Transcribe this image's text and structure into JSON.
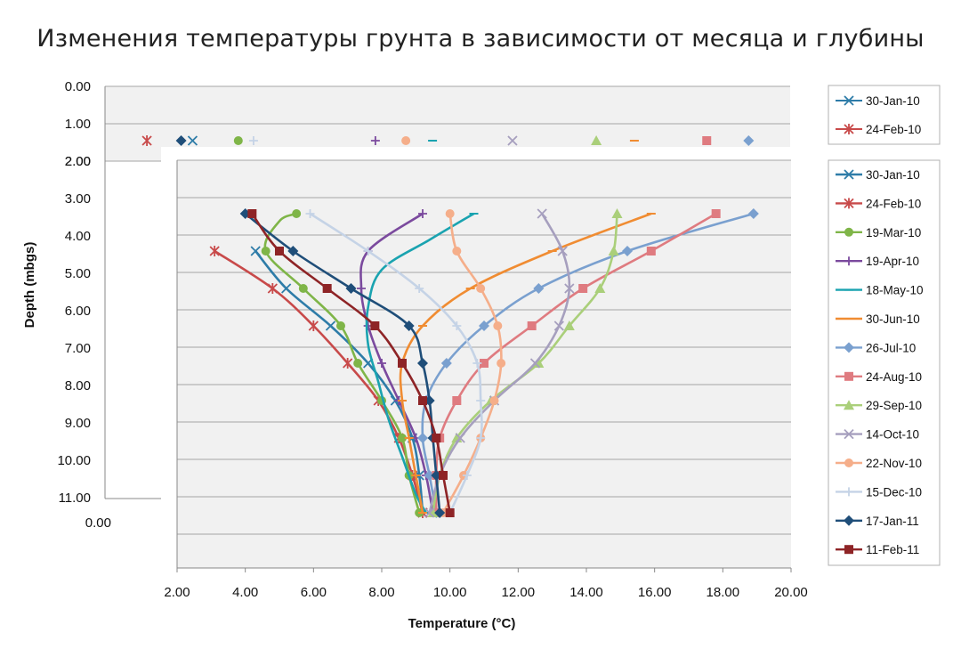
{
  "page": {
    "title": "Изменения температуры грунта в зависимости от месяца и глубины"
  },
  "chart_data": [
    {
      "type": "line",
      "title": "",
      "xlabel": "Temperature (°C)",
      "ylabel": "Depth (mbgs)",
      "xlim": [
        2,
        20
      ],
      "ylim": [
        0,
        12
      ],
      "y_inverted": true,
      "x_ticks": [
        "2.00",
        "4.00",
        "6.00",
        "8.00",
        "10.00",
        "12.00",
        "14.00",
        "16.00",
        "18.00",
        "20.00"
      ],
      "y_ticks": [
        "0.00",
        "1.00",
        "2.00",
        "3.00",
        "4.00",
        "5.00",
        "6.00",
        "7.00",
        "8.00",
        "9.00",
        "10.00",
        "11.00"
      ],
      "grid": true,
      "legend_position": "right",
      "series": [
        {
          "name": "30-Jan-10",
          "color": "#2e7ca8",
          "marker": "x",
          "points": [
            [
              4.3,
              1
            ],
            [
              5.2,
              2
            ],
            [
              6.5,
              3
            ],
            [
              7.6,
              4
            ],
            [
              8.4,
              5
            ],
            [
              8.9,
              6
            ],
            [
              9.1,
              7
            ],
            [
              9.2,
              8
            ]
          ]
        },
        {
          "name": "24-Feb-10",
          "color": "#c84a4a",
          "marker": "star",
          "points": [
            [
              3.1,
              1
            ],
            [
              4.8,
              2
            ],
            [
              6.0,
              3
            ],
            [
              7.0,
              4
            ],
            [
              7.9,
              5
            ],
            [
              8.5,
              6
            ],
            [
              8.9,
              7
            ],
            [
              9.2,
              8
            ]
          ]
        },
        {
          "name": "19-Mar-10",
          "color": "#7fb548",
          "marker": "circle",
          "points": [
            [
              5.5,
              0
            ],
            [
              5.0,
              0.2
            ],
            [
              4.6,
              1
            ],
            [
              5.7,
              2
            ],
            [
              6.8,
              3
            ],
            [
              7.3,
              4
            ],
            [
              8.0,
              5
            ],
            [
              8.6,
              6
            ],
            [
              8.8,
              7
            ],
            [
              9.1,
              8
            ]
          ]
        },
        {
          "name": "19-Apr-10",
          "color": "#7b4a9e",
          "marker": "plus",
          "points": [
            [
              9.2,
              0
            ],
            [
              7.6,
              1
            ],
            [
              7.4,
              2
            ],
            [
              7.6,
              3
            ],
            [
              8.0,
              4
            ],
            [
              8.5,
              5
            ],
            [
              9.0,
              6
            ],
            [
              9.3,
              7
            ],
            [
              9.5,
              8
            ]
          ]
        },
        {
          "name": "18-May-10",
          "color": "#1aa3b0",
          "marker": "dash",
          "points": [
            [
              10.7,
              0
            ],
            [
              9.4,
              0.7
            ],
            [
              8.0,
              1.5
            ],
            [
              7.6,
              2.5
            ],
            [
              7.6,
              3.5
            ],
            [
              7.9,
              4.5
            ],
            [
              8.2,
              5.5
            ],
            [
              8.6,
              6.5
            ],
            [
              9.0,
              7.5
            ],
            [
              9.3,
              8
            ]
          ]
        },
        {
          "name": "30-Jun-10",
          "color": "#f08c32",
          "marker": "dash",
          "points": [
            [
              15.9,
              0
            ],
            [
              13.0,
              1
            ],
            [
              10.6,
              2
            ],
            [
              9.2,
              3
            ],
            [
              8.6,
              4
            ],
            [
              8.6,
              5
            ],
            [
              8.8,
              6
            ],
            [
              9.0,
              7
            ],
            [
              9.2,
              8
            ]
          ]
        },
        {
          "name": "26-Jul-10",
          "color": "#7aa0cf",
          "marker": "diamond",
          "points": [
            [
              18.9,
              0
            ],
            [
              15.2,
              1
            ],
            [
              12.6,
              2
            ],
            [
              11.0,
              3
            ],
            [
              9.9,
              4
            ],
            [
              9.3,
              5
            ],
            [
              9.2,
              6
            ],
            [
              9.4,
              7
            ],
            [
              9.6,
              8
            ]
          ]
        },
        {
          "name": "24-Aug-10",
          "color": "#df7b80",
          "marker": "square",
          "points": [
            [
              17.8,
              0
            ],
            [
              15.9,
              1
            ],
            [
              13.9,
              2
            ],
            [
              12.4,
              3
            ],
            [
              11.0,
              4
            ],
            [
              10.2,
              5
            ],
            [
              9.7,
              6
            ],
            [
              9.6,
              7
            ],
            [
              9.6,
              8
            ]
          ]
        },
        {
          "name": "29-Sep-10",
          "color": "#aacf7a",
          "marker": "triangle",
          "points": [
            [
              14.9,
              0
            ],
            [
              14.8,
              1
            ],
            [
              14.4,
              2
            ],
            [
              13.5,
              3
            ],
            [
              12.6,
              4
            ],
            [
              11.2,
              5
            ],
            [
              10.2,
              6
            ],
            [
              9.7,
              7
            ],
            [
              9.5,
              8
            ]
          ]
        },
        {
          "name": "14-Oct-10",
          "color": "#a69fbe",
          "marker": "x",
          "points": [
            [
              12.7,
              0
            ],
            [
              13.3,
              1
            ],
            [
              13.5,
              2
            ],
            [
              13.2,
              3
            ],
            [
              12.5,
              4
            ],
            [
              11.3,
              5
            ],
            [
              10.3,
              6
            ],
            [
              9.7,
              7
            ],
            [
              9.4,
              8
            ]
          ]
        },
        {
          "name": "22-Nov-10",
          "color": "#f5ae8a",
          "marker": "circle",
          "points": [
            [
              10.0,
              0
            ],
            [
              10.2,
              1
            ],
            [
              10.9,
              2
            ],
            [
              11.4,
              3
            ],
            [
              11.5,
              4
            ],
            [
              11.3,
              5
            ],
            [
              10.9,
              6
            ],
            [
              10.4,
              7
            ],
            [
              9.8,
              8
            ]
          ]
        },
        {
          "name": "15-Dec-10",
          "color": "#c5d3e6",
          "marker": "plus",
          "points": [
            [
              5.9,
              0
            ],
            [
              7.6,
              1
            ],
            [
              9.1,
              2
            ],
            [
              10.2,
              3
            ],
            [
              10.8,
              4
            ],
            [
              10.9,
              5
            ],
            [
              10.9,
              6
            ],
            [
              10.5,
              7
            ],
            [
              10.0,
              8
            ]
          ]
        },
        {
          "name": "17-Jan-11",
          "color": "#1f4e79",
          "marker": "diamond",
          "points": [
            [
              4.0,
              0
            ],
            [
              5.4,
              1
            ],
            [
              7.1,
              2
            ],
            [
              8.8,
              3
            ],
            [
              9.2,
              4
            ],
            [
              9.4,
              5
            ],
            [
              9.5,
              6
            ],
            [
              9.6,
              7
            ],
            [
              9.7,
              8
            ]
          ]
        },
        {
          "name": "11-Feb-11",
          "color": "#8e2426",
          "marker": "square",
          "points": [
            [
              4.2,
              0
            ],
            [
              5.0,
              1
            ],
            [
              6.4,
              2
            ],
            [
              7.8,
              3
            ],
            [
              8.6,
              4
            ],
            [
              9.2,
              5
            ],
            [
              9.6,
              6
            ],
            [
              9.8,
              7
            ],
            [
              10.0,
              8
            ]
          ]
        }
      ]
    },
    {
      "type": "line",
      "x_ticks": [
        "0.00"
      ],
      "y_ticks": [
        "0.00",
        "1.00",
        "2.00"
      ],
      "legend": [
        "30-Jan-10",
        "24-Feb-10"
      ],
      "series": [
        {
          "name": "30-Jan-10",
          "color": "#2e7ca8",
          "marker": "x",
          "points": [
            [
              4.3,
              0
            ]
          ]
        },
        {
          "name": "24-Feb-10",
          "color": "#c84a4a",
          "marker": "star",
          "points": [
            [
              3.1,
              0
            ]
          ]
        },
        {
          "name": "19-Mar-10",
          "color": "#7fb548",
          "marker": "circle",
          "points": [
            [
              5.5,
              0
            ]
          ]
        },
        {
          "name": "19-Apr-10",
          "color": "#7b4a9e",
          "marker": "plus",
          "points": [
            [
              9.1,
              0
            ]
          ]
        },
        {
          "name": "18-May-10",
          "color": "#1aa3b0",
          "marker": "dash",
          "points": [
            [
              10.6,
              0
            ]
          ]
        },
        {
          "name": "30-Jun-10",
          "color": "#f08c32",
          "marker": "dash",
          "points": [
            [
              15.9,
              0
            ]
          ]
        },
        {
          "name": "26-Jul-10",
          "color": "#7aa0cf",
          "marker": "diamond",
          "points": [
            [
              18.9,
              0
            ]
          ]
        },
        {
          "name": "24-Aug-10",
          "color": "#df7b80",
          "marker": "square",
          "points": [
            [
              17.8,
              0
            ]
          ]
        },
        {
          "name": "29-Sep-10",
          "color": "#aacf7a",
          "marker": "triangle",
          "points": [
            [
              14.9,
              0
            ]
          ]
        },
        {
          "name": "14-Oct-10",
          "color": "#a69fbe",
          "marker": "x",
          "points": [
            [
              12.7,
              0
            ]
          ]
        },
        {
          "name": "22-Nov-10",
          "color": "#f5ae8a",
          "marker": "circle",
          "points": [
            [
              9.9,
              0
            ]
          ]
        },
        {
          "name": "15-Dec-10",
          "color": "#c5d3e6",
          "marker": "plus",
          "points": [
            [
              5.9,
              0
            ]
          ]
        },
        {
          "name": "17-Jan-11",
          "color": "#1f4e79",
          "marker": "diamond",
          "points": [
            [
              4.0,
              0
            ]
          ]
        }
      ]
    }
  ]
}
